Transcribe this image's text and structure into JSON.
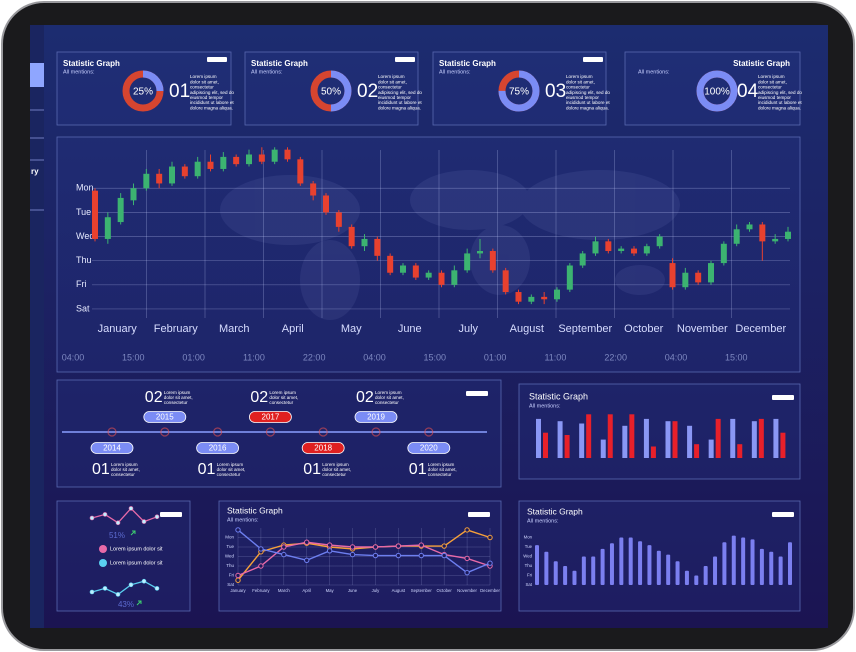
{
  "sidebar": {
    "items": [
      "ry"
    ]
  },
  "chart_data": [
    {
      "type": "donut",
      "title": "Statistic Graph",
      "subtitle": "All mentions:",
      "values": [
        25
      ],
      "value_labels": [
        "25%"
      ],
      "number": "01",
      "description": [
        "Lorem ipsum",
        "dolor sit amet,",
        "consectetur",
        "adipiscing elit, sed do",
        "eiusmod tempor",
        "incididunt ut labore et",
        "dolore magna aliqua."
      ],
      "colors": [
        "#7b8cf5",
        "#d64530"
      ]
    },
    {
      "type": "donut",
      "title": "Statistic Graph",
      "subtitle": "All mentions:",
      "values": [
        50
      ],
      "value_labels": [
        "50%"
      ],
      "number": "02",
      "description": [
        "Lorem ipsum",
        "dolor sit amet,",
        "consectetur",
        "adipiscing elit, sed do",
        "eiusmod tempor",
        "incididunt ut labore et",
        "dolore magna aliqua."
      ],
      "colors": [
        "#7b8cf5",
        "#d64530"
      ]
    },
    {
      "type": "donut",
      "title": "Statistic Graph",
      "subtitle": "All mentions:",
      "values": [
        75
      ],
      "value_labels": [
        "75%"
      ],
      "number": "03",
      "description": [
        "Lorem ipsum",
        "dolor sit amet,",
        "consectetur",
        "adipiscing elit, sed do",
        "eiusmod tempor",
        "incididunt ut labore et",
        "dolore magna aliqua."
      ],
      "colors": [
        "#7b8cf5",
        "#d64530"
      ]
    },
    {
      "type": "donut",
      "title": "Statistic Graph",
      "subtitle": "All mentions:",
      "values": [
        100
      ],
      "value_labels": [
        "100%"
      ],
      "number": "04",
      "description": [
        "Lorem ipsum",
        "dolor sit amet,",
        "consectetur",
        "adipiscing elit, sed do",
        "eiusmod tempor",
        "incididunt ut labore et",
        "dolore magna aliqua."
      ],
      "colors": [
        "#7b8cf5",
        "#d64530"
      ],
      "title_position": "right"
    },
    {
      "type": "candlestick",
      "categories": [
        "January",
        "February",
        "March",
        "April",
        "May",
        "June",
        "July",
        "August",
        "September",
        "October",
        "November",
        "December"
      ],
      "time_labels": [
        "04:00",
        "15:00",
        "01:00",
        "11:00",
        "22:00",
        "04:00",
        "15:00",
        "01:00",
        "11:00",
        "22:00",
        "04:00",
        "15:00"
      ],
      "ylim": [
        -0.5,
        7
      ],
      "yticks": [
        {
          "value": 5,
          "label": "Mon"
        },
        {
          "value": 4,
          "label": "Tue"
        },
        {
          "value": 3,
          "label": "Wed"
        },
        {
          "value": 2,
          "label": "Thu"
        },
        {
          "value": 1,
          "label": "Fri"
        },
        {
          "value": 0,
          "label": "Sat"
        }
      ],
      "grid": true,
      "up_color": "#3cb371",
      "down_color": "#e8412f",
      "candles": [
        {
          "open": 4.9,
          "close": 2.9,
          "high": 5.0,
          "low": 2.8
        },
        {
          "open": 2.9,
          "close": 3.8,
          "high": 4.0,
          "low": 2.7
        },
        {
          "open": 3.6,
          "close": 4.6,
          "high": 4.8,
          "low": 3.5
        },
        {
          "open": 4.5,
          "close": 5.0,
          "high": 5.2,
          "low": 4.3
        },
        {
          "open": 5.0,
          "close": 5.6,
          "high": 5.8,
          "low": 4.9
        },
        {
          "open": 5.6,
          "close": 5.2,
          "high": 5.8,
          "low": 5.0
        },
        {
          "open": 5.2,
          "close": 5.9,
          "high": 6.1,
          "low": 5.1
        },
        {
          "open": 5.9,
          "close": 5.5,
          "high": 6.0,
          "low": 5.4
        },
        {
          "open": 5.5,
          "close": 6.1,
          "high": 6.3,
          "low": 5.4
        },
        {
          "open": 6.1,
          "close": 5.8,
          "high": 6.4,
          "low": 5.7
        },
        {
          "open": 5.8,
          "close": 6.3,
          "high": 6.5,
          "low": 5.7
        },
        {
          "open": 6.3,
          "close": 6.0,
          "high": 6.4,
          "low": 5.9
        },
        {
          "open": 6.0,
          "close": 6.4,
          "high": 6.6,
          "low": 5.9
        },
        {
          "open": 6.4,
          "close": 6.1,
          "high": 6.7,
          "low": 6.0
        },
        {
          "open": 6.1,
          "close": 6.6,
          "high": 6.7,
          "low": 6.0
        },
        {
          "open": 6.6,
          "close": 6.2,
          "high": 6.7,
          "low": 6.1
        },
        {
          "open": 6.2,
          "close": 5.2,
          "high": 6.3,
          "low": 5.1
        },
        {
          "open": 5.2,
          "close": 4.7,
          "high": 5.3,
          "low": 4.5
        },
        {
          "open": 4.7,
          "close": 4.0,
          "high": 4.8,
          "low": 3.9
        },
        {
          "open": 4.0,
          "close": 3.4,
          "high": 4.1,
          "low": 3.2
        },
        {
          "open": 3.4,
          "close": 2.6,
          "high": 3.5,
          "low": 2.5
        },
        {
          "open": 2.6,
          "close": 2.9,
          "high": 3.1,
          "low": 2.4
        },
        {
          "open": 2.9,
          "close": 2.2,
          "high": 3.0,
          "low": 2.0
        },
        {
          "open": 2.2,
          "close": 1.5,
          "high": 2.3,
          "low": 1.4
        },
        {
          "open": 1.5,
          "close": 1.8,
          "high": 1.9,
          "low": 1.4
        },
        {
          "open": 1.8,
          "close": 1.3,
          "high": 1.9,
          "low": 1.2
        },
        {
          "open": 1.3,
          "close": 1.5,
          "high": 1.6,
          "low": 1.2
        },
        {
          "open": 1.5,
          "close": 1.0,
          "high": 1.6,
          "low": 0.9
        },
        {
          "open": 1.0,
          "close": 1.6,
          "high": 1.8,
          "low": 0.9
        },
        {
          "open": 1.6,
          "close": 2.3,
          "high": 2.5,
          "low": 1.5
        },
        {
          "open": 2.3,
          "close": 2.4,
          "high": 2.9,
          "low": 2.1
        },
        {
          "open": 2.4,
          "close": 1.6,
          "high": 2.5,
          "low": 1.5
        },
        {
          "open": 1.6,
          "close": 0.7,
          "high": 1.7,
          "low": 0.6
        },
        {
          "open": 0.7,
          "close": 0.3,
          "high": 0.8,
          "low": 0.2
        },
        {
          "open": 0.3,
          "close": 0.5,
          "high": 0.6,
          "low": 0.2
        },
        {
          "open": 0.5,
          "close": 0.4,
          "high": 0.7,
          "low": 0.2
        },
        {
          "open": 0.4,
          "close": 0.8,
          "high": 0.9,
          "low": 0.3
        },
        {
          "open": 0.8,
          "close": 1.8,
          "high": 1.9,
          "low": 0.7
        },
        {
          "open": 1.8,
          "close": 2.3,
          "high": 2.4,
          "low": 1.7
        },
        {
          "open": 2.3,
          "close": 2.8,
          "high": 3.0,
          "low": 2.2
        },
        {
          "open": 2.8,
          "close": 2.4,
          "high": 2.9,
          "low": 2.3
        },
        {
          "open": 2.4,
          "close": 2.5,
          "high": 2.6,
          "low": 2.3
        },
        {
          "open": 2.5,
          "close": 2.3,
          "high": 2.6,
          "low": 2.2
        },
        {
          "open": 2.3,
          "close": 2.6,
          "high": 2.7,
          "low": 2.2
        },
        {
          "open": 2.6,
          "close": 3.0,
          "high": 3.1,
          "low": 2.5
        },
        {
          "open": 1.9,
          "close": 0.9,
          "high": 2.1,
          "low": 0.8
        },
        {
          "open": 0.9,
          "close": 1.5,
          "high": 1.7,
          "low": 0.8
        },
        {
          "open": 1.5,
          "close": 1.1,
          "high": 1.6,
          "low": 1.0
        },
        {
          "open": 1.1,
          "close": 1.9,
          "high": 2.0,
          "low": 1.0
        },
        {
          "open": 1.9,
          "close": 2.7,
          "high": 2.8,
          "low": 1.8
        },
        {
          "open": 2.7,
          "close": 3.3,
          "high": 3.5,
          "low": 2.6
        },
        {
          "open": 3.3,
          "close": 3.5,
          "high": 3.6,
          "low": 3.2
        },
        {
          "open": 3.5,
          "close": 2.8,
          "high": 3.6,
          "low": 2.0
        },
        {
          "open": 2.8,
          "close": 2.9,
          "high": 3.1,
          "low": 2.7
        },
        {
          "open": 2.9,
          "close": 3.2,
          "high": 3.4,
          "low": 2.8
        }
      ]
    },
    {
      "type": "timeline",
      "events": [
        {
          "year": "2014",
          "number": "01",
          "lines": [
            "Lorem ipsum",
            "dolor sit amet,",
            "consectetur"
          ],
          "color": "#7b8cf5"
        },
        {
          "year": "2015",
          "number": "02",
          "lines": [
            "Lorem ipsum",
            "dolor sit amet,",
            "consectetur"
          ],
          "color": "#7b8cf5"
        },
        {
          "year": "2016",
          "number": "01",
          "lines": [
            "Lorem ipsum",
            "dolor sit amet,",
            "consectetur"
          ],
          "color": "#7b8cf5"
        },
        {
          "year": "2017",
          "number": "02",
          "lines": [
            "Lorem ipsum",
            "dolor sit amet,",
            "consectetur"
          ],
          "color": "#e02020"
        },
        {
          "year": "2018",
          "number": "01",
          "lines": [
            "Lorem ipsum",
            "dolor sit amet,",
            "consectetur"
          ],
          "color": "#e02020"
        },
        {
          "year": "2019",
          "number": "02",
          "lines": [
            "Lorem ipsum",
            "dolor sit amet,",
            "consectetur"
          ],
          "color": "#7b8cf5"
        },
        {
          "year": "2020",
          "number": "01",
          "lines": [
            "Lorem ipsum",
            "dolor sit amet,",
            "consectetur"
          ],
          "color": "#7b8cf5"
        }
      ]
    },
    {
      "type": "grouped-bar",
      "title": "Statistic Graph",
      "subtitle": "All mentions:",
      "ylim": [
        0,
        100
      ],
      "series": [
        {
          "color": "#8a97f5",
          "values": [
            85,
            80,
            75,
            40,
            70,
            85,
            80,
            70,
            40,
            85,
            80,
            85
          ]
        },
        {
          "color": "#e8202a",
          "values": [
            55,
            50,
            95,
            95,
            95,
            25,
            80,
            30,
            85,
            30,
            85,
            55
          ]
        }
      ]
    },
    {
      "type": "sparkline",
      "ylim": [
        0,
        4
      ],
      "series": [
        {
          "name": "Lorem ipsum dolor sit",
          "color": "#e86aa8",
          "values": [
            2.0,
            2.6,
            1.2,
            3.6,
            1.4,
            2.2
          ],
          "annotation": "51%"
        },
        {
          "name": "Lorem ipsum dolor sit",
          "color": "#5ad0f0",
          "values": [
            1.0,
            1.6,
            0.6,
            2.2,
            2.8,
            1.6
          ],
          "annotation": "43%"
        }
      ]
    },
    {
      "type": "line",
      "title": "Statistic Graph",
      "subtitle": "All mentions:",
      "categories": [
        "January",
        "February",
        "March",
        "April",
        "May",
        "June",
        "July",
        "August",
        "September",
        "October",
        "November",
        "December"
      ],
      "ylim": [
        0,
        6
      ],
      "yticks": [
        {
          "value": 5,
          "label": "Mon"
        },
        {
          "value": 4,
          "label": "Tue"
        },
        {
          "value": 3,
          "label": "Wed"
        },
        {
          "value": 2,
          "label": "Thu"
        },
        {
          "value": 1,
          "label": "Fri"
        },
        {
          "value": 0,
          "label": "Sat"
        }
      ],
      "grid": true,
      "series": [
        {
          "color": "#f5a03a",
          "values": [
            0.5,
            3.5,
            4.2,
            4.4,
            4.0,
            3.8,
            4.0,
            4.1,
            4.1,
            4.1,
            5.8,
            5.0
          ]
        },
        {
          "color": "#e86aa8",
          "values": [
            1.0,
            2.0,
            4.0,
            4.5,
            4.2,
            4.0,
            4.0,
            4.1,
            4.2,
            3.2,
            2.8,
            2.0
          ]
        },
        {
          "color": "#6d7ff0",
          "values": [
            5.8,
            3.8,
            3.2,
            2.6,
            3.6,
            3.2,
            3.1,
            3.1,
            3.1,
            3.1,
            1.3,
            2.3
          ]
        }
      ]
    },
    {
      "type": "bar",
      "title": "Statistic Graph",
      "subtitle": "All mentions:",
      "color": "#7b7ff0",
      "ylim": [
        0,
        6
      ],
      "yticks": [
        {
          "value": 5,
          "label": "Mon"
        },
        {
          "value": 4,
          "label": "Tue"
        },
        {
          "value": 3,
          "label": "Wed"
        },
        {
          "value": 2,
          "label": "Thu"
        },
        {
          "value": 1,
          "label": "Fri"
        },
        {
          "value": 0,
          "label": "Sat"
        }
      ],
      "values": [
        4.2,
        3.5,
        2.5,
        2.0,
        1.5,
        3.0,
        3.0,
        3.8,
        4.4,
        5.0,
        5.0,
        4.6,
        4.2,
        3.6,
        3.2,
        2.5,
        1.5,
        1.0,
        2.0,
        3.0,
        4.5,
        5.2,
        5.0,
        4.8,
        3.8,
        3.5,
        3.0,
        4.5
      ]
    }
  ]
}
